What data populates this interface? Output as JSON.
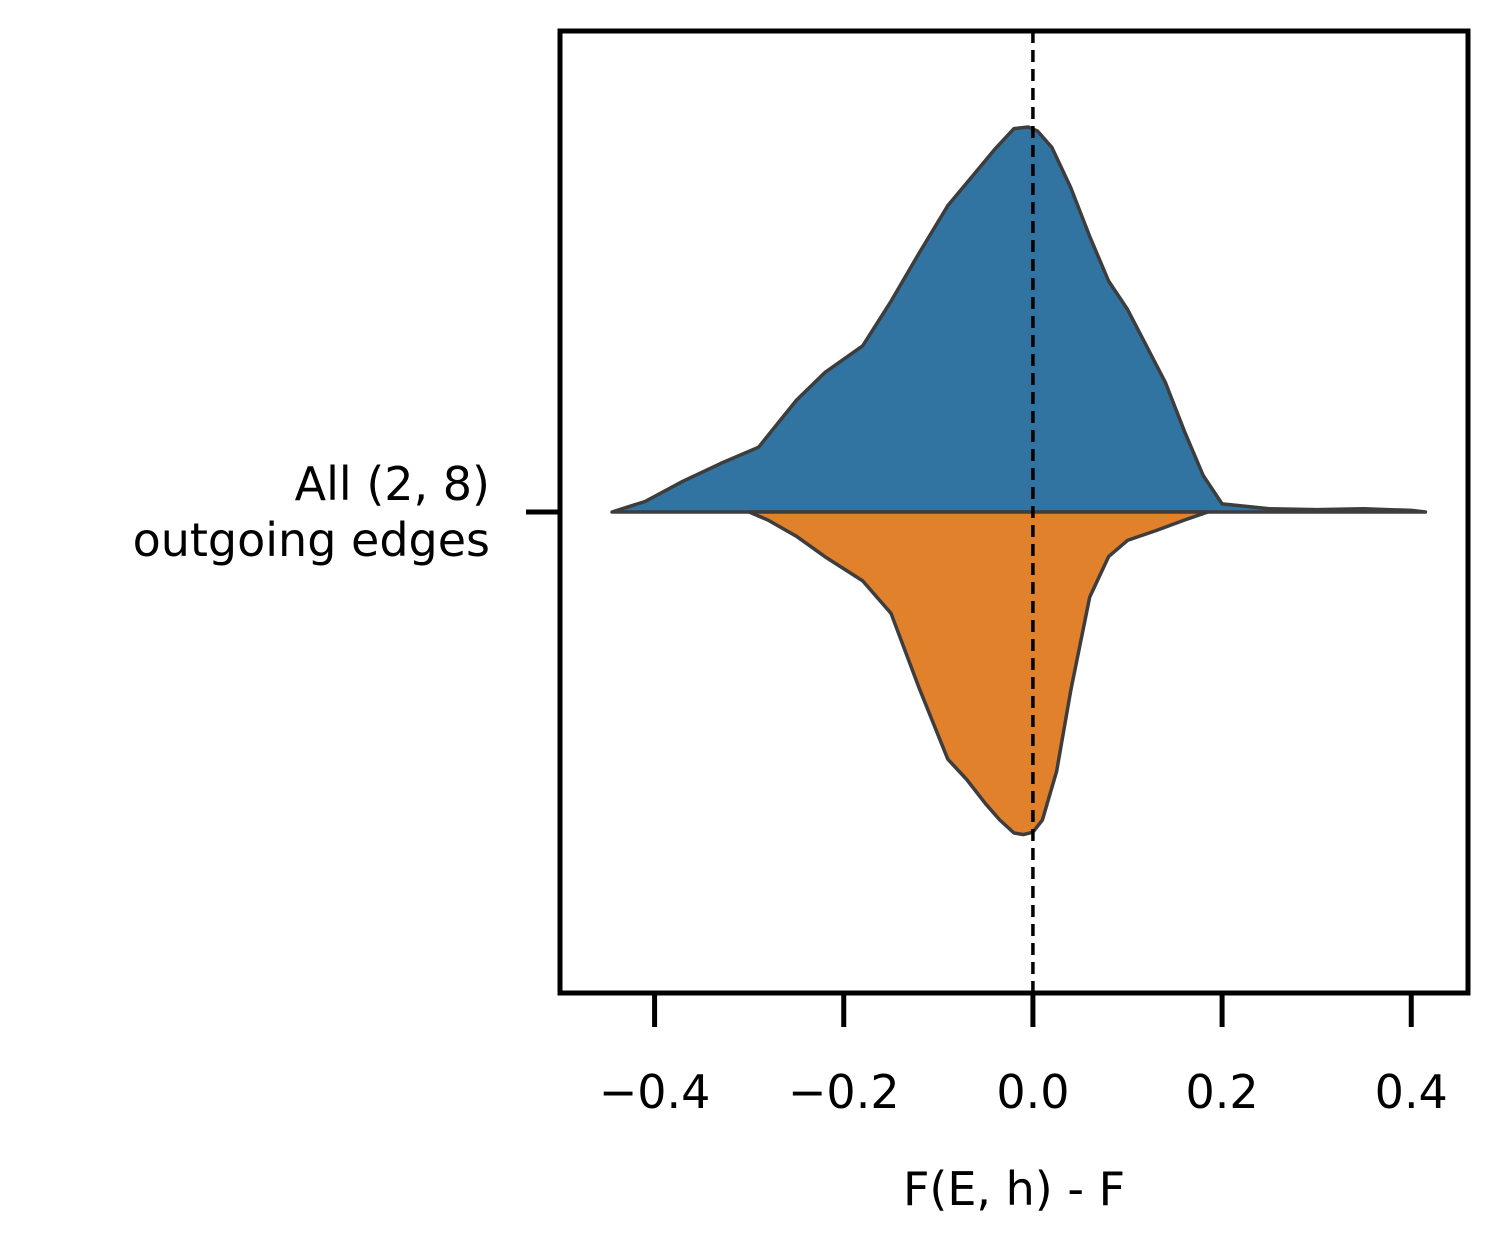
{
  "chart_data": {
    "type": "violin",
    "orientation": "horizontal",
    "title": "",
    "xlabel": "F(E, h) - F",
    "ylabel": "",
    "categories": [
      {
        "lines": [
          "All (2, 8)",
          "outgoing edges"
        ]
      }
    ],
    "xlim": [
      -0.5,
      0.46
    ],
    "xticks": [
      {
        "value": -0.4,
        "label": "−0.4"
      },
      {
        "value": -0.2,
        "label": "−0.2"
      },
      {
        "value": 0.0,
        "label": "0.0"
      },
      {
        "value": 0.2,
        "label": "0.2"
      },
      {
        "value": 0.4,
        "label": "0.4"
      }
    ],
    "reference_line": {
      "x": 0.0,
      "style": "dashed",
      "color": "#000000"
    },
    "split": true,
    "halves": [
      {
        "side": "upper",
        "color": "#3274a1",
        "min": -0.445,
        "max": 0.415,
        "profile": [
          [
            -0.445,
            0.0
          ],
          [
            -0.41,
            0.013
          ],
          [
            -0.37,
            0.038
          ],
          [
            -0.33,
            0.06
          ],
          [
            -0.29,
            0.08
          ],
          [
            -0.25,
            0.138
          ],
          [
            -0.22,
            0.172
          ],
          [
            -0.18,
            0.205
          ],
          [
            -0.15,
            0.26
          ],
          [
            -0.12,
            0.32
          ],
          [
            -0.09,
            0.378
          ],
          [
            -0.06,
            0.42
          ],
          [
            -0.04,
            0.448
          ],
          [
            -0.02,
            0.473
          ],
          [
            -0.005,
            0.475
          ],
          [
            0.005,
            0.47
          ],
          [
            0.02,
            0.45
          ],
          [
            0.04,
            0.4
          ],
          [
            0.06,
            0.34
          ],
          [
            0.08,
            0.285
          ],
          [
            0.1,
            0.25
          ],
          [
            0.12,
            0.205
          ],
          [
            0.14,
            0.16
          ],
          [
            0.16,
            0.1
          ],
          [
            0.18,
            0.045
          ],
          [
            0.2,
            0.01
          ],
          [
            0.25,
            0.004
          ],
          [
            0.3,
            0.003
          ],
          [
            0.35,
            0.004
          ],
          [
            0.4,
            0.002
          ],
          [
            0.415,
            0.0
          ]
        ]
      },
      {
        "side": "lower",
        "color": "#e1812c",
        "min": -0.3,
        "max": 0.185,
        "profile": [
          [
            -0.3,
            0.0
          ],
          [
            -0.28,
            0.01
          ],
          [
            -0.25,
            0.03
          ],
          [
            -0.22,
            0.055
          ],
          [
            -0.18,
            0.085
          ],
          [
            -0.15,
            0.125
          ],
          [
            -0.12,
            0.218
          ],
          [
            -0.09,
            0.305
          ],
          [
            -0.07,
            0.33
          ],
          [
            -0.05,
            0.36
          ],
          [
            -0.035,
            0.38
          ],
          [
            -0.02,
            0.396
          ],
          [
            -0.01,
            0.398
          ],
          [
            0.0,
            0.395
          ],
          [
            0.01,
            0.38
          ],
          [
            0.025,
            0.32
          ],
          [
            0.04,
            0.22
          ],
          [
            0.06,
            0.105
          ],
          [
            0.08,
            0.055
          ],
          [
            0.1,
            0.035
          ],
          [
            0.13,
            0.023
          ],
          [
            0.16,
            0.01
          ],
          [
            0.185,
            0.0
          ]
        ]
      }
    ]
  }
}
